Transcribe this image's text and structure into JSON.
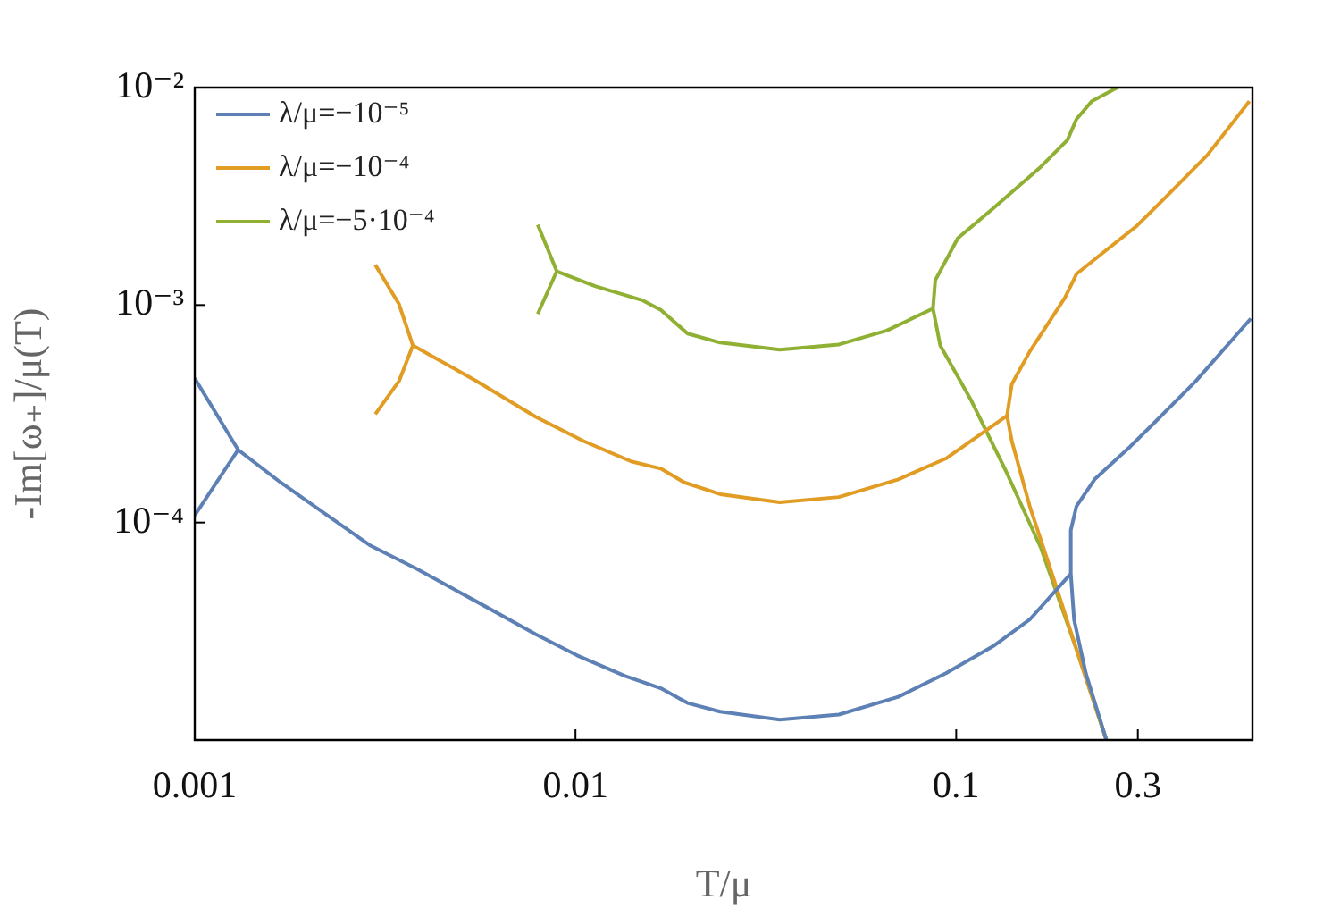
{
  "chart_data": {
    "type": "line",
    "xlabel": "T/μ",
    "ylabel": "-Im[ω₊]/μ(T)",
    "log": "xy",
    "grid": false,
    "legend": "top left",
    "marker": "none",
    "line_style": "solid",
    "xlim": [
      0.001,
      0.6
    ],
    "xticks": [
      0.001,
      0.01,
      0.1,
      0.3
    ],
    "ylim": [
      1e-05,
      0.01
    ],
    "yticks": [
      {
        "value": 0.01,
        "label": "10⁻²"
      },
      {
        "value": 0.001,
        "label": "10⁻³"
      },
      {
        "value": 0.0001,
        "label": "10⁻⁴"
      }
    ],
    "series": [
      {
        "name": "λ/μ=−10⁻⁵",
        "color": "#5e81b5",
        "x": [
          0.001,
          0.0013,
          0.001,
          null,
          0.0013,
          0.00168,
          0.00223,
          0.00288,
          0.00383,
          0.0055,
          0.00787,
          0.0101,
          0.0135,
          0.01675,
          0.0197,
          0.024,
          0.0344,
          0.0492,
          0.0705,
          0.094,
          0.125,
          0.156,
          0.2,
          0.2,
          0.207,
          0.231,
          0.286,
          0.331,
          0.426,
          0.594,
          null,
          0.2,
          0.204,
          0.219,
          0.248
        ],
        "values": [
          0.000108,
          0.000216,
          0.00046,
          null,
          0.000216,
          0.000153,
          0.000108,
          7.87e-05,
          6.12e-05,
          4.33e-05,
          3.06e-05,
          2.45e-05,
          1.97e-05,
          1.73e-05,
          1.48e-05,
          1.35e-05,
          1.24e-05,
          1.31e-05,
          1.58e-05,
          2.03e-05,
          2.7e-05,
          3.58e-05,
          5.82e-05,
          9.22e-05,
          0.000119,
          0.000158,
          0.000223,
          0.000287,
          0.000447,
          0.000866,
          null,
          5.82e-05,
          3.58e-05,
          2.03e-05,
          1e-05
        ]
      },
      {
        "name": "λ/μ=−10⁻⁴",
        "color": "#e19c24",
        "x": [
          0.00298,
          0.00344,
          0.00374,
          0.00344,
          0.00298,
          null,
          0.00374,
          0.0055,
          0.00787,
          0.0105,
          0.014,
          0.01675,
          0.0193,
          0.024,
          0.0344,
          0.0492,
          0.0705,
          0.094,
          0.136,
          0.14,
          0.156,
          0.193,
          0.207,
          0.248,
          0.297,
          0.356,
          0.457,
          0.589,
          null,
          0.136,
          0.14,
          0.156,
          0.18,
          0.207,
          0.248
        ],
        "values": [
          0.000315,
          0.000447,
          0.000652,
          0.00101,
          0.00153,
          null,
          0.000652,
          0.000447,
          0.000306,
          0.000237,
          0.000191,
          0.000177,
          0.000153,
          0.000135,
          0.000124,
          0.000131,
          0.000158,
          0.000197,
          0.00031,
          0.000433,
          0.000611,
          0.00108,
          0.00139,
          0.00179,
          0.0023,
          0.00315,
          0.0049,
          0.00865,
          null,
          0.00031,
          0.000237,
          0.000119,
          5.57e-05,
          2.61e-05,
          1e-05
        ]
      },
      {
        "name": "λ/μ=−5·10⁻⁴",
        "color": "#8fb032",
        "x": [
          0.00796,
          0.00893,
          0.00796,
          null,
          0.00893,
          0.0113,
          0.01503,
          0.01675,
          0.0197,
          0.024,
          0.0344,
          0.0492,
          0.0657,
          0.0869,
          0.0881,
          0.101,
          0.125,
          0.167,
          0.196,
          0.207,
          0.227,
          0.265,
          null,
          0.0869,
          0.0908,
          0.109,
          0.135,
          0.167,
          0.207,
          0.248
        ],
        "values": [
          0.00091,
          0.00143,
          0.00234,
          null,
          0.00143,
          0.00122,
          0.00105,
          0.00095,
          0.000739,
          0.000672,
          0.000623,
          0.000659,
          0.000763,
          0.000963,
          0.0013,
          0.00203,
          0.00278,
          0.00433,
          0.00574,
          0.00716,
          0.00865,
          0.01,
          null,
          0.000963,
          0.000652,
          0.00037,
          0.000173,
          7.63e-05,
          2.61e-05,
          1e-05
        ]
      }
    ]
  }
}
